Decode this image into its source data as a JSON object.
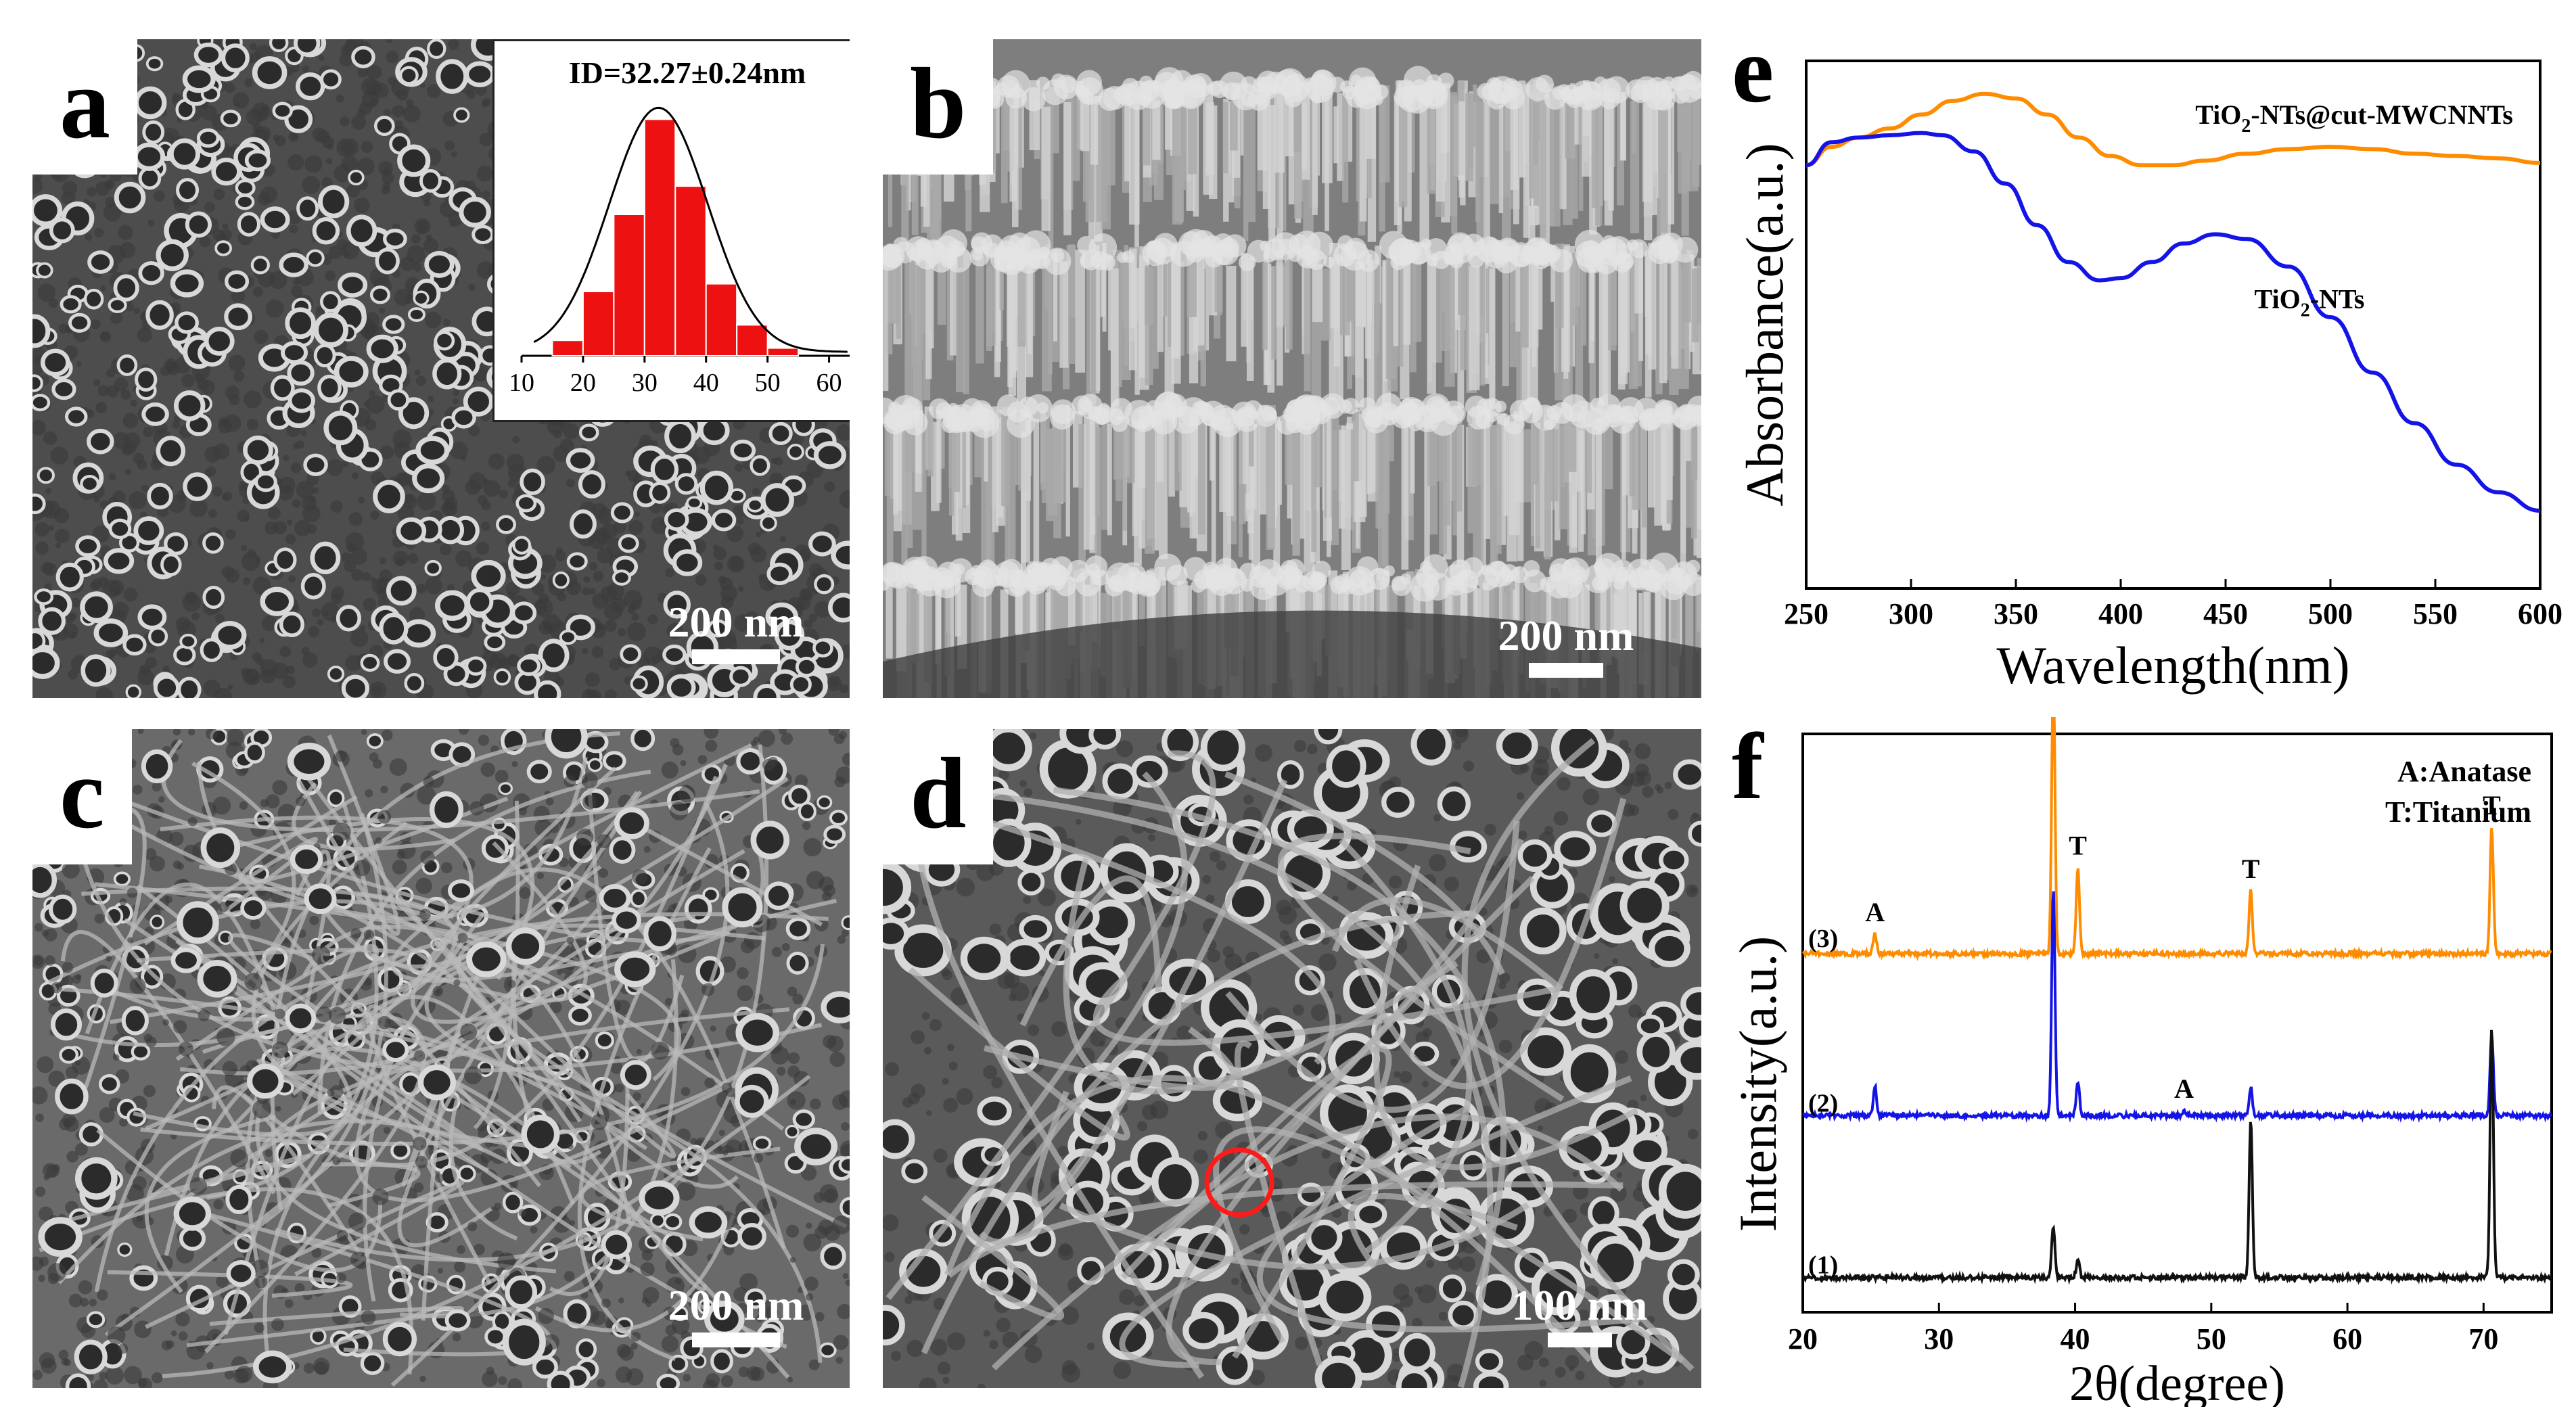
{
  "panels": {
    "a": {
      "letter": "a",
      "scale_label": "200 nm",
      "inset": {
        "title": "ID=32.27±0.24nm",
        "chart_data": {
          "type": "bar",
          "x_ticks": [
            "10",
            "20",
            "30",
            "40",
            "50",
            "60"
          ],
          "bin_centers": [
            17.5,
            22.5,
            27.5,
            32.5,
            37.5,
            42.5,
            47.5,
            52.5
          ],
          "values": [
            0.06,
            0.25,
            0.55,
            0.92,
            0.66,
            0.28,
            0.12,
            0.03
          ],
          "xlim": [
            10,
            65
          ],
          "bar_color": "#ee1111",
          "fit_curve": "gaussian",
          "fit_center": 32.27
        }
      }
    },
    "b": {
      "letter": "b",
      "scale_label": "200 nm"
    },
    "c": {
      "letter": "c",
      "scale_label": "200 nm"
    },
    "d": {
      "letter": "d",
      "scale_label": "100 nm",
      "circle_color": "#ff1a1a"
    },
    "e": {
      "letter": "e",
      "chart_data": {
        "type": "line",
        "xlabel": "Wavelength(nm)",
        "ylabel": "Absorbance(a.u.)",
        "xlim": [
          250,
          600
        ],
        "x_ticks": [
          250,
          300,
          350,
          400,
          450,
          500,
          550,
          600
        ],
        "ylim": [
          0,
          1
        ],
        "series": [
          {
            "name": "TiO2-NTs@cut-MWCNNTs",
            "label_main": "TiO",
            "label_sub": "2",
            "label_rest": "-NTs@cut-MWCNNTs",
            "color": "#ff8c00",
            "x": [
              250,
              262,
              275,
              290,
              305,
              320,
              335,
              350,
              365,
              380,
              395,
              410,
              425,
              440,
              460,
              480,
              500,
              520,
              540,
              560,
              580,
              600
            ],
            "y": [
              0.83,
              0.87,
              0.89,
              0.91,
              0.94,
              0.97,
              0.985,
              0.975,
              0.94,
              0.89,
              0.85,
              0.83,
              0.83,
              0.84,
              0.855,
              0.865,
              0.87,
              0.865,
              0.855,
              0.85,
              0.845,
              0.835
            ]
          },
          {
            "name": "TiO2-NTs",
            "label_main": "TiO",
            "label_sub": "2",
            "label_rest": "-NTs",
            "color": "#1414e6",
            "x": [
              250,
              262,
              275,
              290,
              305,
              315,
              330,
              345,
              360,
              375,
              390,
              400,
              415,
              430,
              445,
              460,
              480,
              500,
              520,
              540,
              560,
              580,
              600
            ],
            "y": [
              0.83,
              0.88,
              0.89,
              0.895,
              0.9,
              0.895,
              0.86,
              0.79,
              0.7,
              0.62,
              0.58,
              0.585,
              0.62,
              0.66,
              0.68,
              0.67,
              0.61,
              0.5,
              0.38,
              0.27,
              0.18,
              0.12,
              0.08
            ]
          }
        ]
      }
    },
    "f": {
      "letter": "f",
      "legend": [
        "A:Anatase",
        "T:Titanium"
      ],
      "chart_data": {
        "type": "line",
        "xlabel": "2θ(degree)",
        "ylabel": "Intensity(a.u.)",
        "xlim": [
          20,
          75
        ],
        "x_ticks": [
          20,
          30,
          40,
          50,
          60,
          70
        ],
        "series": [
          {
            "name": "(3)",
            "color": "#ff8c00",
            "baseline": 0.62,
            "peaks": [
              [
                25.3,
                0.035
              ],
              [
                38.4,
                0.48
              ],
              [
                40.2,
                0.15
              ],
              [
                52.9,
                0.11
              ],
              [
                70.6,
                0.22
              ]
            ],
            "peak_labels": [
              {
                "x": 25.3,
                "label": "A"
              },
              {
                "x": 38.4,
                "label": "T"
              },
              {
                "x": 40.2,
                "label": "T"
              },
              {
                "x": 52.9,
                "label": "T"
              },
              {
                "x": 70.6,
                "label": "T"
              }
            ]
          },
          {
            "name": "(2)",
            "color": "#1414e6",
            "baseline": 0.34,
            "peaks": [
              [
                25.3,
                0.05
              ],
              [
                38.4,
                0.39
              ],
              [
                40.2,
                0.06
              ],
              [
                48.0,
                0.01
              ],
              [
                52.9,
                0.05
              ],
              [
                70.6,
                0.14
              ]
            ],
            "peak_labels": [
              {
                "x": 48.0,
                "label": "A"
              }
            ]
          },
          {
            "name": "(1)",
            "color": "#111111",
            "baseline": 0.06,
            "peaks": [
              [
                38.4,
                0.09
              ],
              [
                40.2,
                0.03
              ],
              [
                52.9,
                0.27
              ],
              [
                70.6,
                0.43
              ]
            ],
            "peak_labels": []
          }
        ]
      }
    }
  }
}
